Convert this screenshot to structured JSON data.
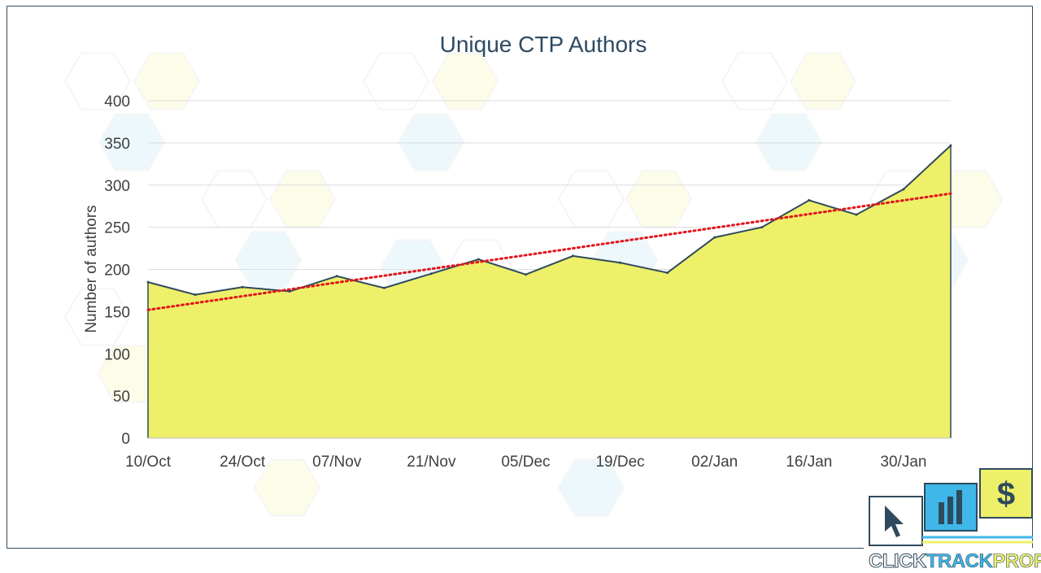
{
  "chart_data": {
    "type": "area",
    "title": "Unique CTP Authors",
    "ylabel": "Number of authors",
    "xlabel": "",
    "ylim": [
      0,
      400
    ],
    "yticks": [
      0,
      50,
      100,
      150,
      200,
      250,
      300,
      350,
      400
    ],
    "xtick_labels": [
      "10/Oct",
      "24/Oct",
      "07/Nov",
      "21/Nov",
      "05/Dec",
      "19/Dec",
      "02/Jan",
      "16/Jan",
      "30/Jan"
    ],
    "x": [
      "10/Oct",
      "17/Oct",
      "24/Oct",
      "31/Oct",
      "07/Nov",
      "14/Nov",
      "21/Nov",
      "28/Nov",
      "05/Dec",
      "12/Dec",
      "19/Dec",
      "26/Dec",
      "02/Jan",
      "09/Jan",
      "16/Jan",
      "23/Jan",
      "30/Jan",
      "06/Feb"
    ],
    "series": [
      {
        "values": [
          185,
          170,
          179,
          174,
          192,
          178,
          195,
          212,
          194,
          216,
          208,
          196,
          238,
          250,
          282,
          265,
          295,
          347
        ]
      }
    ],
    "trendline": {
      "type": "linear",
      "start": 152,
      "end": 290
    },
    "grid": true,
    "legend": "none",
    "colors": {
      "area_fill": "#eef06a",
      "area_line": "#2f4a5c",
      "trend": "#e3141b",
      "title": "#2f4a63"
    }
  },
  "logo": {
    "word1": "CLICK",
    "word2": "TRACK",
    "word3": "PROFIT",
    "dollar": "$",
    "icons": [
      "cursor-icon",
      "bar-chart-icon",
      "dollar-icon"
    ]
  }
}
